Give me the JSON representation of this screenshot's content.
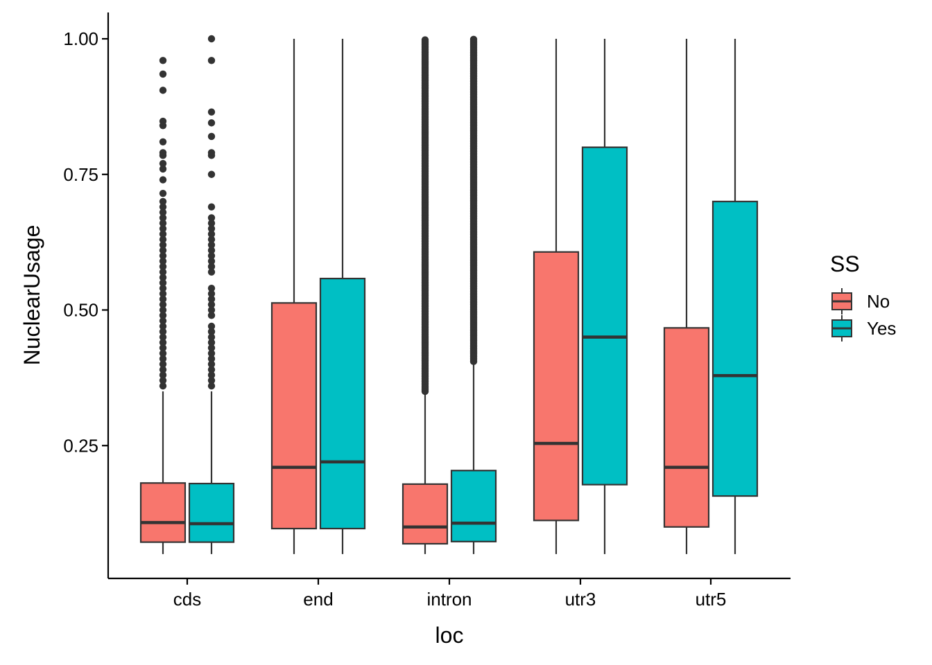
{
  "chart_data": {
    "type": "box",
    "xlabel": "loc",
    "ylabel": "NuclearUsage",
    "ylim": [
      0.0,
      1.0
    ],
    "y_ticks": [
      0.25,
      0.5,
      0.75,
      1.0
    ],
    "y_tick_labels": [
      "0.25",
      "0.50",
      "0.75",
      "1.00"
    ],
    "categories": [
      "cds",
      "end",
      "intron",
      "utr3",
      "utr5"
    ],
    "legend": {
      "title": "SS",
      "placement": "right"
    },
    "grid": false,
    "series": [
      {
        "name": "No",
        "color": "#F8766D",
        "boxes": [
          {
            "category": "cds",
            "whisker_low": 0.05,
            "q1": 0.072,
            "median": 0.108,
            "q3": 0.181,
            "whisker_high": 0.35,
            "outliers": [
              0.96,
              0.935,
              0.905,
              0.848,
              0.84,
              0.81,
              0.79,
              0.785,
              0.77,
              0.76,
              0.74,
              0.715,
              0.7,
              0.69,
              0.68,
              0.67,
              0.66,
              0.65,
              0.64,
              0.63,
              0.62,
              0.61,
              0.6,
              0.59,
              0.58,
              0.57,
              0.56,
              0.55,
              0.54,
              0.53,
              0.52,
              0.51,
              0.5,
              0.49,
              0.48,
              0.47,
              0.46,
              0.45,
              0.44,
              0.43,
              0.42,
              0.41,
              0.4,
              0.39,
              0.38,
              0.37,
              0.36
            ]
          },
          {
            "category": "end",
            "whisker_low": 0.05,
            "q1": 0.097,
            "median": 0.21,
            "q3": 0.513,
            "whisker_high": 1.0,
            "outliers": []
          },
          {
            "category": "intron",
            "whisker_low": 0.05,
            "q1": 0.069,
            "median": 0.1,
            "q3": 0.179,
            "whisker_high": 0.345,
            "outliers_range": [
              0.35,
              1.0
            ]
          },
          {
            "category": "utr3",
            "whisker_low": 0.05,
            "q1": 0.112,
            "median": 0.254,
            "q3": 0.607,
            "whisker_high": 1.0,
            "outliers": []
          },
          {
            "category": "utr5",
            "whisker_low": 0.05,
            "q1": 0.1,
            "median": 0.21,
            "q3": 0.467,
            "whisker_high": 1.0,
            "outliers": []
          }
        ]
      },
      {
        "name": "Yes",
        "color": "#00BFC4",
        "boxes": [
          {
            "category": "cds",
            "whisker_low": 0.05,
            "q1": 0.072,
            "median": 0.106,
            "q3": 0.18,
            "whisker_high": 0.35,
            "outliers": [
              1.0,
              0.96,
              0.865,
              0.845,
              0.82,
              0.79,
              0.785,
              0.75,
              0.69,
              0.67,
              0.66,
              0.65,
              0.64,
              0.63,
              0.62,
              0.61,
              0.6,
              0.59,
              0.58,
              0.57,
              0.54,
              0.53,
              0.52,
              0.51,
              0.5,
              0.49,
              0.47,
              0.46,
              0.45,
              0.44,
              0.43,
              0.42,
              0.41,
              0.4,
              0.39,
              0.38,
              0.37,
              0.36
            ]
          },
          {
            "category": "end",
            "whisker_low": 0.05,
            "q1": 0.097,
            "median": 0.22,
            "q3": 0.558,
            "whisker_high": 1.0,
            "outliers": []
          },
          {
            "category": "intron",
            "whisker_low": 0.05,
            "q1": 0.073,
            "median": 0.107,
            "q3": 0.204,
            "whisker_high": 0.4,
            "outliers_range": [
              0.405,
              1.0
            ]
          },
          {
            "category": "utr3",
            "whisker_low": 0.05,
            "q1": 0.178,
            "median": 0.45,
            "q3": 0.8,
            "whisker_high": 1.0,
            "outliers": []
          },
          {
            "category": "utr5",
            "whisker_low": 0.05,
            "q1": 0.157,
            "median": 0.379,
            "q3": 0.7,
            "whisker_high": 1.0,
            "outliers": []
          }
        ]
      }
    ]
  }
}
